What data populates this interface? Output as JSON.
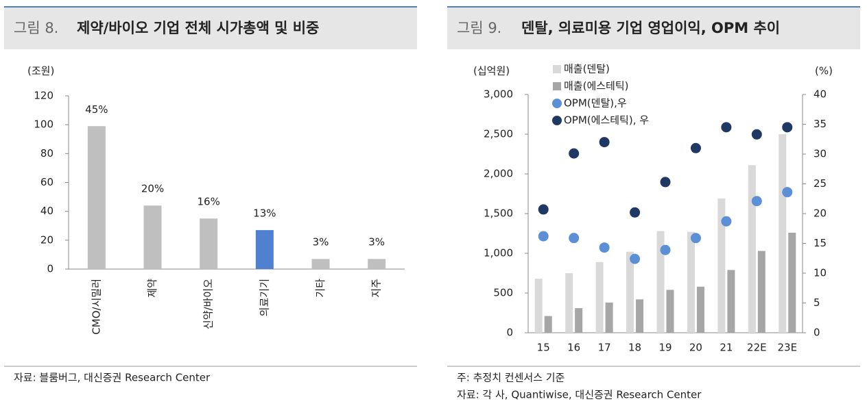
{
  "chart_data": [
    {
      "type": "bar",
      "figure": "그림 8.",
      "title": "제약/바이오 기업 전체 시가총액 및 비중",
      "y_unit": "(조원)",
      "categories": [
        "CMO/시밀러",
        "제약",
        "신약/바이오",
        "의료기기",
        "기타",
        "지주"
      ],
      "values": [
        99,
        44,
        35,
        27,
        7,
        7
      ],
      "share_labels": [
        "45%",
        "20%",
        "16%",
        "13%",
        "3%",
        "3%"
      ],
      "colors": [
        "#bfbfbf",
        "#bfbfbf",
        "#bfbfbf",
        "#4f81d0",
        "#bfbfbf",
        "#bfbfbf"
      ],
      "ylim": [
        0,
        120
      ],
      "yticks": [
        0,
        20,
        40,
        60,
        80,
        100,
        120
      ],
      "source": "자료: 블룸버그, 대신증권 Research Center"
    },
    {
      "type": "combo",
      "figure": "그림 9.",
      "title": "덴탈, 의료미용 기업 영업이익, OPM 추이",
      "y_unit": "(십억원)",
      "y2_unit": "(%)",
      "categories": [
        "15",
        "16",
        "17",
        "18",
        "19",
        "20",
        "21",
        "22E",
        "23E"
      ],
      "series": [
        {
          "name": "매출(덴탈)",
          "kind": "bar",
          "color": "#d9d9d9",
          "values": [
            680,
            750,
            890,
            1020,
            1280,
            1270,
            1690,
            2110,
            2500
          ]
        },
        {
          "name": "매출(에스테틱)",
          "kind": "bar",
          "color": "#a6a6a6",
          "values": [
            210,
            310,
            380,
            420,
            540,
            580,
            790,
            1030,
            1260
          ]
        },
        {
          "name": "OPM(덴탈),우",
          "kind": "dot",
          "axis": "y2",
          "color": "#5b8fd6",
          "values": [
            16.2,
            15.9,
            14.3,
            12.4,
            13.9,
            15.9,
            18.7,
            22.1,
            23.6
          ]
        },
        {
          "name": "OPM(에스테틱), 우",
          "kind": "dot",
          "axis": "y2",
          "color": "#1f3864",
          "values": [
            20.7,
            30.1,
            32.0,
            20.2,
            25.3,
            31.0,
            34.5,
            33.3,
            34.5
          ]
        }
      ],
      "ylim": [
        0,
        3000
      ],
      "yticks": [
        0,
        500,
        {
          "value": 1000,
          "label": "1,000"
        },
        {
          "value": 1500,
          "label": "1,500"
        },
        {
          "value": 2000,
          "label": "2,000"
        },
        {
          "value": 2500,
          "label": "2,500"
        },
        {
          "value": 3000,
          "label": "3,000"
        }
      ],
      "y2lim": [
        0,
        40
      ],
      "y2ticks": [
        0,
        5,
        10,
        15,
        20,
        25,
        30,
        35,
        40
      ],
      "notes": [
        "주: 추정치 컨센서스 기준",
        "자료: 각 사, Quantiwise, 대신증권 Research Center"
      ]
    }
  ]
}
